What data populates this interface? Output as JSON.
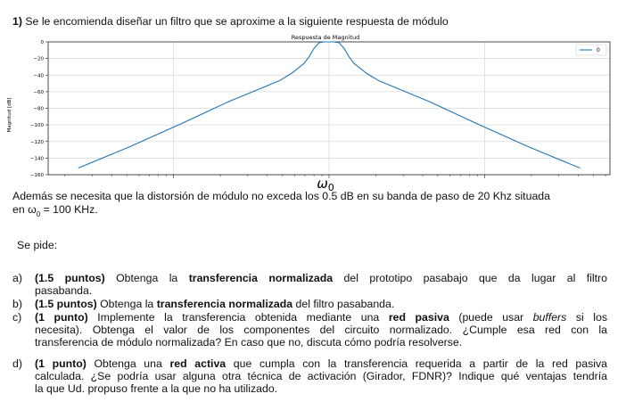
{
  "header": {
    "number": "1)",
    "text": "Se le encomienda diseñar un filtro que se aproxime a la siguiente respuesta de módulo"
  },
  "chart_data": {
    "type": "line",
    "title": "Respuesta de Magnitud",
    "xlabel": "ω0",
    "ylabel": "Magnitud [dB]",
    "ylim": [
      -160,
      0
    ],
    "yticks": [
      0,
      -20,
      -40,
      -60,
      -80,
      -100,
      -120,
      -140,
      -160
    ],
    "ytick_labels": [
      "0",
      "−20",
      "−40",
      "−60",
      "−80",
      "−100",
      "−120",
      "−140",
      "−160"
    ],
    "legend": {
      "placement": "top-right",
      "entries": [
        "0"
      ]
    },
    "grid": true,
    "series": [
      {
        "name": "0",
        "color": "#1f77b4",
        "x": [
          -1.0,
          -0.8,
          -0.6,
          -0.4,
          -0.2,
          -0.15,
          -0.1,
          -0.08,
          -0.06,
          -0.04,
          -0.02,
          0.0,
          0.02,
          0.04,
          0.06,
          0.08,
          0.1,
          0.15,
          0.2,
          0.4,
          0.6,
          0.8,
          1.0
        ],
        "values": [
          -152,
          -127,
          -100,
          -72,
          -47,
          -38,
          -26,
          -18,
          -8,
          -1,
          0,
          0,
          0,
          -1,
          -8,
          -18,
          -26,
          -38,
          -47,
          -72,
          -100,
          -127,
          -152
        ]
      }
    ]
  },
  "line1": {
    "text": "Además se necesita que la distorsión de módulo no exceda los 0.5 dB en su banda de paso de 20 Khz situada"
  },
  "line2": {
    "pre": "en ω",
    "sub": "0",
    "post": " = 100 KHz."
  },
  "se_pide": "Se pide:",
  "items": {
    "a": {
      "letter": "a)",
      "points": "(1.5 puntos)",
      "t1": " Obtenga la ",
      "bold1": "transferencia normalizada",
      "t2": " del prototipo pasabajo que da lugar al filtro",
      "cont": "pasabanda."
    },
    "b": {
      "letter": "b)",
      "points": "(1.5 puntos)",
      "t1": " Obtenga la ",
      "bold1": "transferencia normalizada",
      "t2": " del filtro pasabanda."
    },
    "c": {
      "letter": "c)",
      "points": "(1 punto)",
      "t1": " Implemente la transferencia obtenida mediante una ",
      "bold1": "red pasiva",
      "t2": " (puede usar ",
      "ital1": "buffers",
      "t3": " si los",
      "line2": "necesita). Obtenga el valor de los componentes del circuito normalizado. ¿Cumple esa red con la",
      "line3": "transferencia de módulo normalizada? En caso que no, discuta cómo podría resolverse."
    },
    "d": {
      "letter": "d)",
      "points": "(1 punto)",
      "t1": " Obtenga una ",
      "bold1": "red activa",
      "t2": " que cumpla con la transferencia requerida a partir de la red pasiva",
      "line2": "calculada. ¿Se podría usar alguna otra técnica de activación (Girador, FDNR)? Indique qué ventajas tendría",
      "line3": "la que Ud. propuso frente a la que no ha utilizado."
    }
  }
}
